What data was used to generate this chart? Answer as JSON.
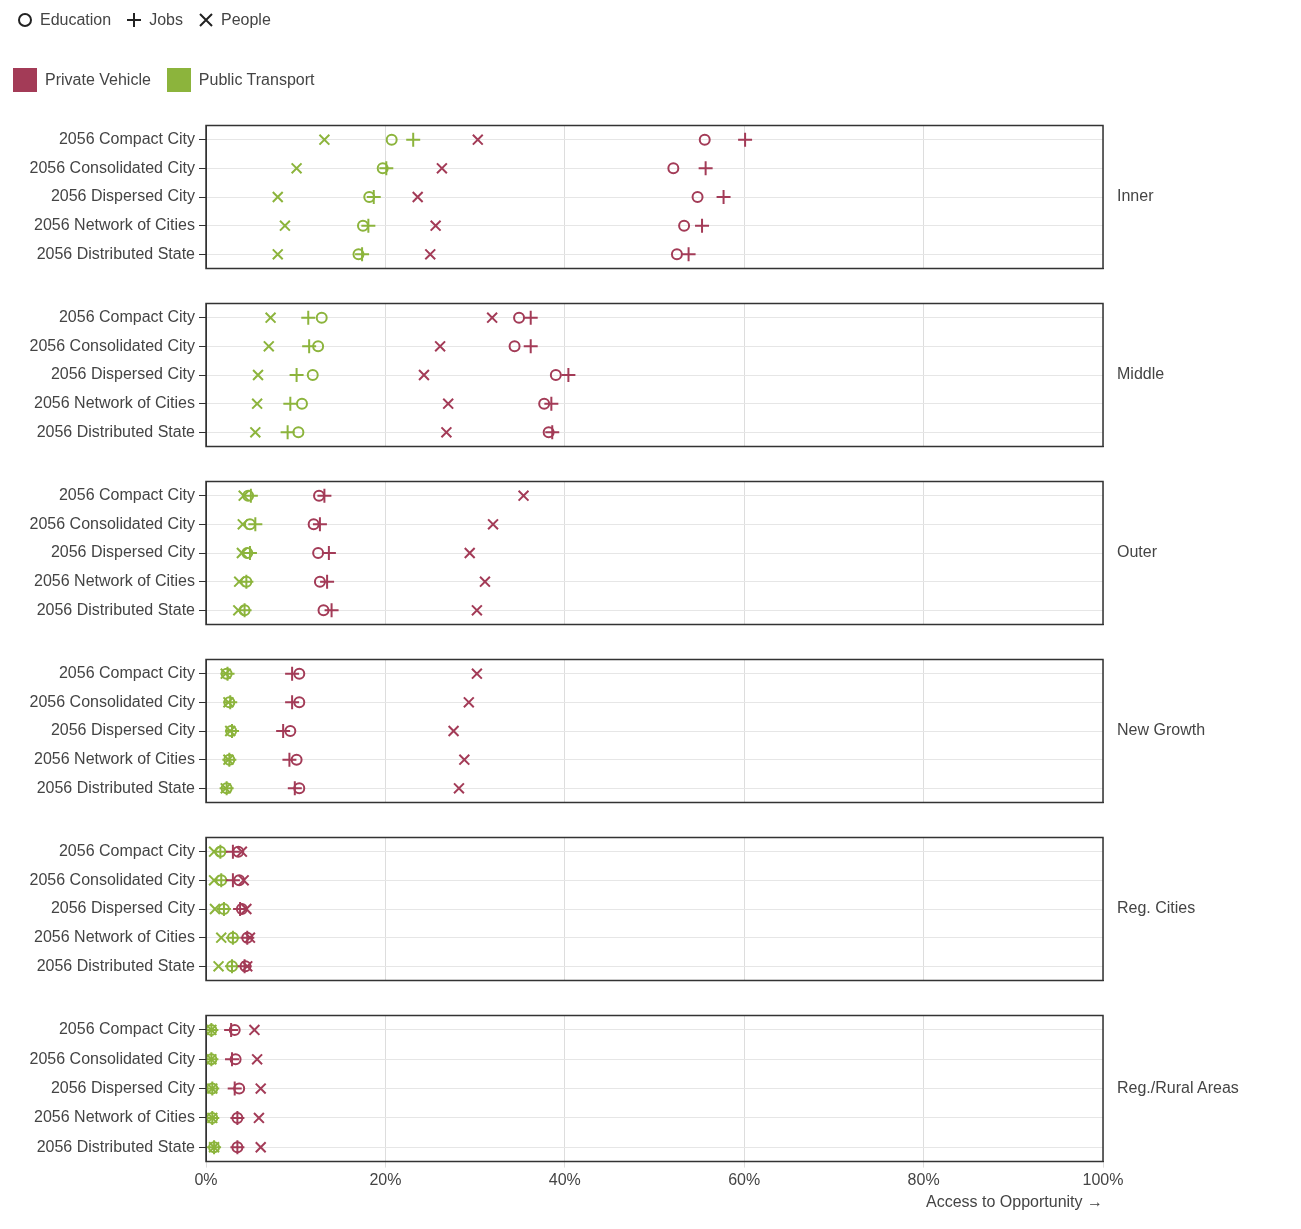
{
  "chart_data": [
    {
      "type": "scatter",
      "y2label": "Inner",
      "orientation": "horizontal",
      "annotations": [
        "Education",
        "Jobs",
        "People",
        "Private Vehicle",
        "Public Transport"
      ],
      "grid": true,
      "tick_labels": "y",
      "xlim": [
        0,
        100
      ],
      "xticks": [
        0,
        20,
        40,
        60,
        80,
        100
      ],
      "categories": [
        "2056 Compact City",
        "2056 Consolidated City",
        "2056 Dispersed City",
        "2056 Network of Cities",
        "2056 Distributed State"
      ],
      "series": [
        {
          "marker": "circle",
          "color": "#a33b57",
          "values": [
            55.6,
            52.1,
            54.8,
            53.3,
            52.5
          ]
        },
        {
          "marker": "cross",
          "color": "#a33b57",
          "values": [
            60.1,
            55.7,
            57.7,
            55.3,
            53.8
          ]
        },
        {
          "marker": "x",
          "color": "#a33b57",
          "values": [
            30.3,
            26.3,
            23.6,
            25.6,
            25.0
          ]
        },
        {
          "marker": "circle",
          "color": "#8cb43c",
          "values": [
            20.7,
            19.7,
            18.2,
            17.5,
            17.0
          ]
        },
        {
          "marker": "cross",
          "color": "#8cb43c",
          "values": [
            23.1,
            20.1,
            18.7,
            18.1,
            17.4
          ]
        },
        {
          "marker": "x",
          "color": "#8cb43c",
          "values": [
            13.2,
            10.1,
            8.0,
            8.8,
            8.0
          ]
        }
      ]
    },
    {
      "type": "scatter",
      "y2label": "Middle",
      "orientation": "horizontal",
      "grid": true,
      "tick_labels": "y",
      "xlim": [
        0,
        100
      ],
      "xticks": [
        0,
        20,
        40,
        60,
        80,
        100
      ],
      "categories": [
        "2056 Compact City",
        "2056 Consolidated City",
        "2056 Dispersed City",
        "2056 Network of Cities",
        "2056 Distributed State"
      ],
      "series": [
        {
          "marker": "circle",
          "color": "#a33b57",
          "values": [
            34.9,
            34.4,
            39.0,
            37.7,
            38.2
          ]
        },
        {
          "marker": "cross",
          "color": "#a33b57",
          "values": [
            36.2,
            36.2,
            40.4,
            38.5,
            38.6
          ]
        },
        {
          "marker": "x",
          "color": "#a33b57",
          "values": [
            31.9,
            26.1,
            24.3,
            27.0,
            26.8
          ]
        },
        {
          "marker": "circle",
          "color": "#8cb43c",
          "values": [
            12.9,
            12.5,
            11.9,
            10.7,
            10.3
          ]
        },
        {
          "marker": "cross",
          "color": "#8cb43c",
          "values": [
            11.4,
            11.5,
            10.1,
            9.4,
            9.1
          ]
        },
        {
          "marker": "x",
          "color": "#8cb43c",
          "values": [
            7.2,
            7.0,
            5.8,
            5.7,
            5.5
          ]
        }
      ]
    },
    {
      "type": "scatter",
      "y2label": "Outer",
      "orientation": "horizontal",
      "grid": true,
      "tick_labels": "y",
      "xlim": [
        0,
        100
      ],
      "xticks": [
        0,
        20,
        40,
        60,
        80,
        100
      ],
      "categories": [
        "2056 Compact City",
        "2056 Consolidated City",
        "2056 Dispersed City",
        "2056 Network of Cities",
        "2056 Distributed State"
      ],
      "series": [
        {
          "marker": "circle",
          "color": "#a33b57",
          "values": [
            12.6,
            12.0,
            12.5,
            12.7,
            13.1
          ]
        },
        {
          "marker": "cross",
          "color": "#a33b57",
          "values": [
            13.2,
            12.7,
            13.7,
            13.5,
            14.0
          ]
        },
        {
          "marker": "x",
          "color": "#a33b57",
          "values": [
            35.4,
            32.0,
            29.4,
            31.1,
            30.2
          ]
        },
        {
          "marker": "circle",
          "color": "#8cb43c",
          "values": [
            4.7,
            4.9,
            4.6,
            4.5,
            4.3
          ]
        },
        {
          "marker": "cross",
          "color": "#8cb43c",
          "values": [
            5.0,
            5.5,
            4.9,
            4.5,
            4.3
          ]
        },
        {
          "marker": "x",
          "color": "#8cb43c",
          "values": [
            4.2,
            4.1,
            4.0,
            3.7,
            3.6
          ]
        }
      ]
    },
    {
      "type": "scatter",
      "y2label": "New Growth",
      "orientation": "horizontal",
      "grid": true,
      "tick_labels": "y",
      "xlim": [
        0,
        100
      ],
      "xticks": [
        0,
        20,
        40,
        60,
        80,
        100
      ],
      "categories": [
        "2056 Compact City",
        "2056 Consolidated City",
        "2056 Dispersed City",
        "2056 Network of Cities",
        "2056 Distributed State"
      ],
      "series": [
        {
          "marker": "circle",
          "color": "#a33b57",
          "values": [
            10.4,
            10.4,
            9.4,
            10.1,
            10.4
          ]
        },
        {
          "marker": "cross",
          "color": "#a33b57",
          "values": [
            9.6,
            9.6,
            8.6,
            9.3,
            9.9
          ]
        },
        {
          "marker": "x",
          "color": "#a33b57",
          "values": [
            30.2,
            29.3,
            27.6,
            28.8,
            28.2
          ]
        },
        {
          "marker": "circle",
          "color": "#8cb43c",
          "values": [
            2.3,
            2.6,
            2.8,
            2.6,
            2.3
          ]
        },
        {
          "marker": "cross",
          "color": "#8cb43c",
          "values": [
            2.4,
            2.7,
            2.9,
            2.6,
            2.3
          ]
        },
        {
          "marker": "x",
          "color": "#8cb43c",
          "values": [
            2.2,
            2.5,
            2.7,
            2.5,
            2.2
          ]
        }
      ]
    },
    {
      "type": "scatter",
      "y2label": "Reg. Cities",
      "orientation": "horizontal",
      "grid": true,
      "tick_labels": "y",
      "xlim": [
        0,
        100
      ],
      "xticks": [
        0,
        20,
        40,
        60,
        80,
        100
      ],
      "categories": [
        "2056 Compact City",
        "2056 Consolidated City",
        "2056 Dispersed City",
        "2056 Network of Cities",
        "2056 Distributed State"
      ],
      "series": [
        {
          "marker": "circle",
          "color": "#a33b57",
          "values": [
            3.6,
            3.7,
            4.0,
            4.6,
            4.4
          ]
        },
        {
          "marker": "cross",
          "color": "#a33b57",
          "values": [
            3.0,
            3.0,
            3.8,
            4.6,
            4.3
          ]
        },
        {
          "marker": "x",
          "color": "#a33b57",
          "values": [
            4.0,
            4.2,
            4.5,
            4.9,
            4.6
          ]
        },
        {
          "marker": "circle",
          "color": "#8cb43c",
          "values": [
            1.6,
            1.7,
            2.0,
            3.0,
            2.9
          ]
        },
        {
          "marker": "cross",
          "color": "#8cb43c",
          "values": [
            1.6,
            1.7,
            2.0,
            3.0,
            2.9
          ]
        },
        {
          "marker": "x",
          "color": "#8cb43c",
          "values": [
            0.9,
            0.9,
            1.0,
            1.7,
            1.4
          ]
        }
      ]
    },
    {
      "type": "scatter",
      "y2label": "Reg./Rural Areas",
      "orientation": "horizontal",
      "grid": true,
      "xlabel": "Access to Opportunity →",
      "xlim": [
        0,
        100
      ],
      "xticks": [
        {
          "value": 0,
          "label": "0%"
        },
        {
          "value": 20,
          "label": "20%"
        },
        {
          "value": 40,
          "label": "40%"
        },
        {
          "value": 60,
          "label": "60%"
        },
        {
          "value": 80,
          "label": "80%"
        },
        {
          "value": 100,
          "label": "100%"
        }
      ],
      "categories": [
        "2056 Compact City",
        "2056 Consolidated City",
        "2056 Dispersed City",
        "2056 Network of Cities",
        "2056 Distributed State"
      ],
      "series": [
        {
          "marker": "circle",
          "color": "#a33b57",
          "values": [
            3.2,
            3.3,
            3.7,
            3.5,
            3.5
          ]
        },
        {
          "marker": "cross",
          "color": "#a33b57",
          "values": [
            2.8,
            2.9,
            3.2,
            3.5,
            3.5
          ]
        },
        {
          "marker": "x",
          "color": "#a33b57",
          "values": [
            5.4,
            5.7,
            6.1,
            5.9,
            6.1
          ]
        },
        {
          "marker": "circle",
          "color": "#8cb43c",
          "values": [
            0.6,
            0.6,
            0.7,
            0.7,
            0.9
          ]
        },
        {
          "marker": "cross",
          "color": "#8cb43c",
          "values": [
            0.6,
            0.6,
            0.7,
            0.7,
            0.9
          ]
        },
        {
          "marker": "x",
          "color": "#8cb43c",
          "values": [
            0.6,
            0.6,
            0.7,
            0.7,
            0.9
          ]
        }
      ]
    }
  ]
}
